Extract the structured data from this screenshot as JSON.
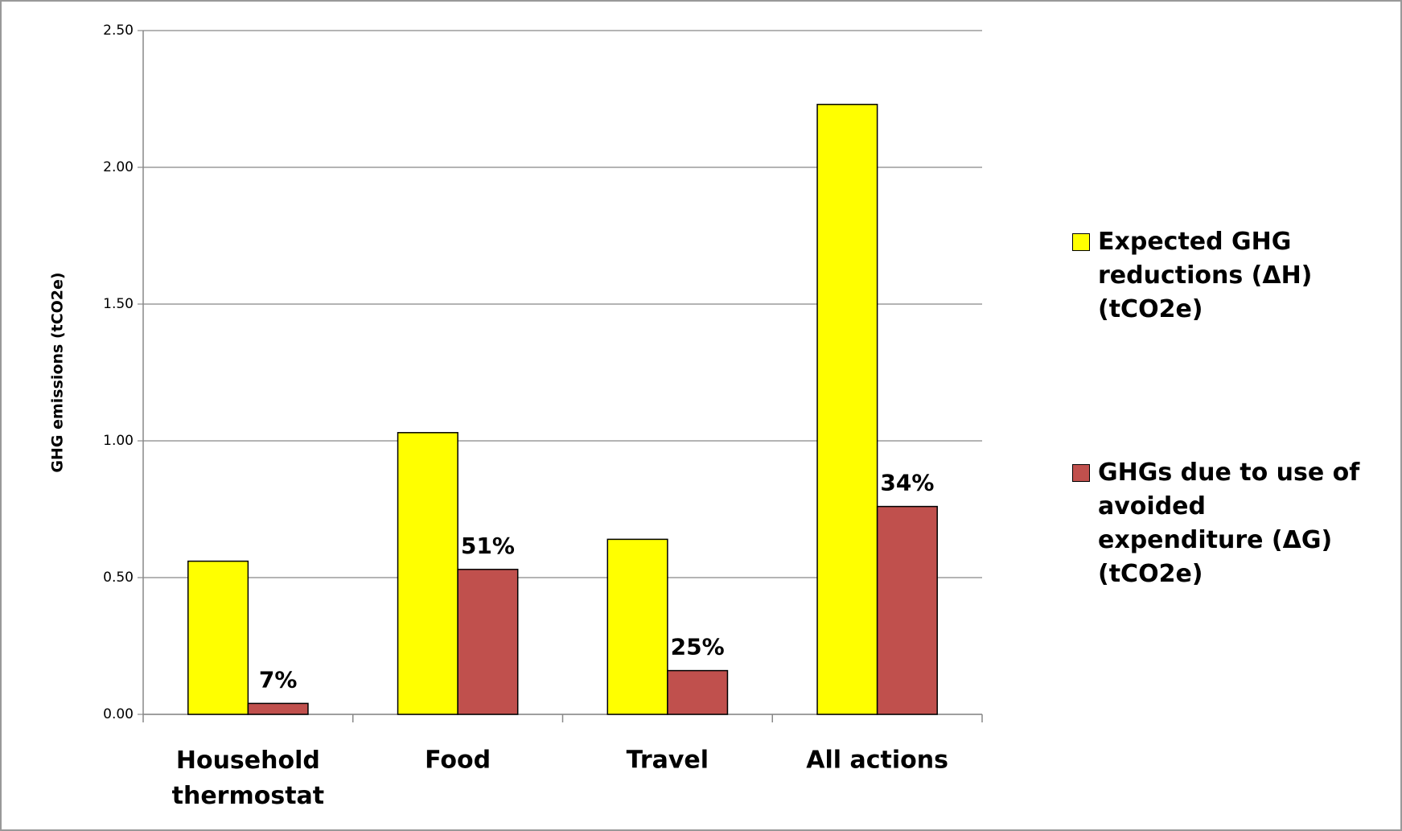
{
  "chart_data": {
    "type": "bar",
    "y_label": "GHG emissions (tCO2e)",
    "categories": [
      "Household thermostat",
      "Food",
      "Travel",
      "All actions"
    ],
    "series": [
      {
        "name": "Expected GHG reductions (ΔH) (tCO2e)",
        "color": "#ffff00",
        "values": [
          0.56,
          1.03,
          0.64,
          2.23
        ]
      },
      {
        "name": "GHGs due to use of avoided expenditure (ΔG) (tCO2e)",
        "color": "#c0504d",
        "values": [
          0.04,
          0.53,
          0.16,
          0.76
        ]
      }
    ],
    "annotations": [
      "7%",
      "51%",
      "25%",
      "34%"
    ],
    "ylim": [
      0,
      2.5
    ],
    "yticks": [
      {
        "value": 0,
        "label": "0.00"
      },
      {
        "value": 0.5,
        "label": "0.50"
      },
      {
        "value": 1,
        "label": "1.00"
      },
      {
        "value": 1.5,
        "label": "1.50"
      },
      {
        "value": 2,
        "label": "2.00"
      },
      {
        "value": 2.5,
        "label": "2.50"
      }
    ],
    "grid": true
  }
}
